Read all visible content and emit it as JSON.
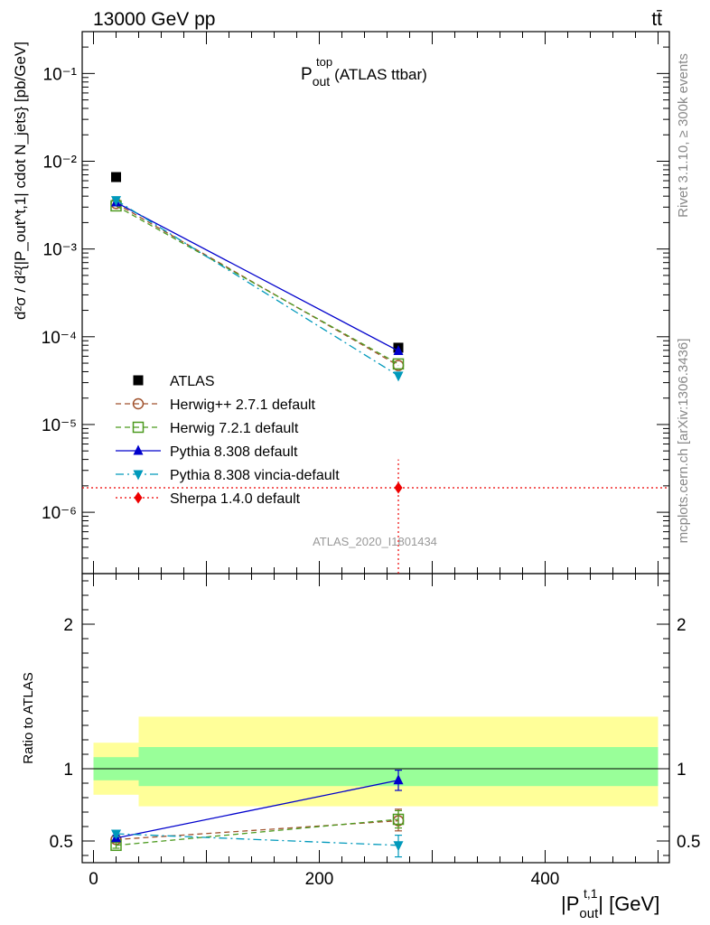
{
  "header": {
    "left_label": "13000 GeV pp",
    "right_label": "tt̄"
  },
  "side_labels": {
    "rivet": "Rivet 3.1.10, ≥ 300k events",
    "mcplots": "mcplots.cern.ch [arXiv:1306.3436]"
  },
  "watermark": "ATLAS_2020_I1801434",
  "colors": {
    "atlas": "#000000",
    "herwigpp": "#a0522d",
    "herwig7": "#4c9a1f",
    "pythia": "#0000cc",
    "vincia": "#0099bb",
    "sherpa": "#ee0000",
    "band_inner": "#99ff99",
    "band_outer": "#ffff99"
  },
  "chart_data": [
    {
      "type": "scatter",
      "panel": "main",
      "title_main": "P",
      "title_sup": "top",
      "title_sub": "out",
      "title_rest": "(ATLAS ttbar)",
      "ylabel": "d²σ / d²{|P_out^t,1| cdot N_jets} [pb/GeV]",
      "yscale": "log",
      "ylim": [
        2e-07,
        0.3
      ],
      "xlim": [
        -10,
        510
      ],
      "ytick_labels": [
        "10⁻⁶",
        "10⁻⁵",
        "10⁻⁴",
        "10⁻³",
        "10⁻²",
        "10⁻¹"
      ],
      "ytick_values": [
        1e-06,
        1e-05,
        0.0001,
        0.001,
        0.01,
        0.1
      ],
      "series": [
        {
          "name": "ATLAS",
          "key": "atlas",
          "marker": "square-filled",
          "line": "none",
          "x": [
            20,
            270
          ],
          "y": [
            0.0066,
            7.5e-05
          ]
        },
        {
          "name": "Herwig++ 2.7.1 default",
          "key": "herwigpp",
          "marker": "circle-open",
          "line": "dashed",
          "x": [
            20,
            270
          ],
          "y": [
            0.0033,
            4.7e-05
          ]
        },
        {
          "name": "Herwig 7.2.1 default",
          "key": "herwig7",
          "marker": "square-open",
          "line": "dashed",
          "x": [
            20,
            270
          ],
          "y": [
            0.0031,
            4.9e-05
          ]
        },
        {
          "name": "Pythia 8.308 default",
          "key": "pythia",
          "marker": "triangle-up",
          "line": "solid",
          "x": [
            20,
            270
          ],
          "y": [
            0.0034,
            6.9e-05
          ]
        },
        {
          "name": "Pythia 8.308 vincia-default",
          "key": "vincia",
          "marker": "triangle-down",
          "line": "dashdot",
          "x": [
            20,
            270
          ],
          "y": [
            0.0036,
            3.6e-05
          ]
        },
        {
          "name": "Sherpa 1.4.0 default",
          "key": "sherpa",
          "marker": "diamond",
          "line": "dotted",
          "x": [
            270
          ],
          "y": [
            1.9e-06
          ],
          "xerr": [
            [
              -10,
              510
            ]
          ],
          "yerr": [
            [
              2e-07,
              4e-06
            ]
          ]
        }
      ]
    },
    {
      "type": "scatter",
      "panel": "ratio",
      "ylabel": "Ratio to ATLAS",
      "xlabel": "|P_out^t,1| [GeV]",
      "xlabel_main": "|P",
      "xlabel_sup": "t,1",
      "xlabel_sub": "out",
      "xlabel_rest": "| [GeV]",
      "ylim": [
        0.35,
        2.35
      ],
      "xlim": [
        -10,
        510
      ],
      "xtick_labels": [
        "0",
        "200",
        "400"
      ],
      "xtick_values": [
        0,
        200,
        400
      ],
      "ytick_labels": [
        "0.5",
        "1",
        "2"
      ],
      "ytick_values": [
        0.5,
        1,
        2
      ],
      "bands": [
        {
          "x": [
            0,
            40
          ],
          "inner": [
            0.92,
            1.08
          ],
          "outer": [
            0.82,
            1.18
          ]
        },
        {
          "x": [
            40,
            500
          ],
          "inner": [
            0.88,
            1.15
          ],
          "outer": [
            0.74,
            1.36
          ]
        }
      ],
      "reference_line": 1,
      "series": [
        {
          "name": "Herwig++ 2.7.1 default",
          "key": "herwigpp",
          "marker": "circle-open",
          "line": "dashed",
          "x": [
            20,
            270
          ],
          "y": [
            0.51,
            0.64
          ],
          "yerr": [
            [
              0.49,
              0.53
            ],
            [
              0.57,
              0.72
            ]
          ]
        },
        {
          "name": "Herwig 7.2.1 default",
          "key": "herwig7",
          "marker": "square-open",
          "line": "dashed",
          "x": [
            20,
            270
          ],
          "y": [
            0.47,
            0.65
          ],
          "yerr": [
            [
              0.45,
              0.49
            ],
            [
              0.59,
              0.71
            ]
          ]
        },
        {
          "name": "Pythia 8.308 default",
          "key": "pythia",
          "marker": "triangle-up",
          "line": "solid",
          "x": [
            20,
            270
          ],
          "y": [
            0.52,
            0.92
          ],
          "yerr": [
            [
              0.5,
              0.54
            ],
            [
              0.85,
              0.99
            ]
          ]
        },
        {
          "name": "Pythia 8.308 vincia-default",
          "key": "vincia",
          "marker": "triangle-down",
          "line": "dashdot",
          "x": [
            20,
            270
          ],
          "y": [
            0.55,
            0.47
          ],
          "yerr": [
            [
              0.53,
              0.57
            ],
            [
              0.39,
              0.54
            ]
          ]
        }
      ]
    }
  ]
}
